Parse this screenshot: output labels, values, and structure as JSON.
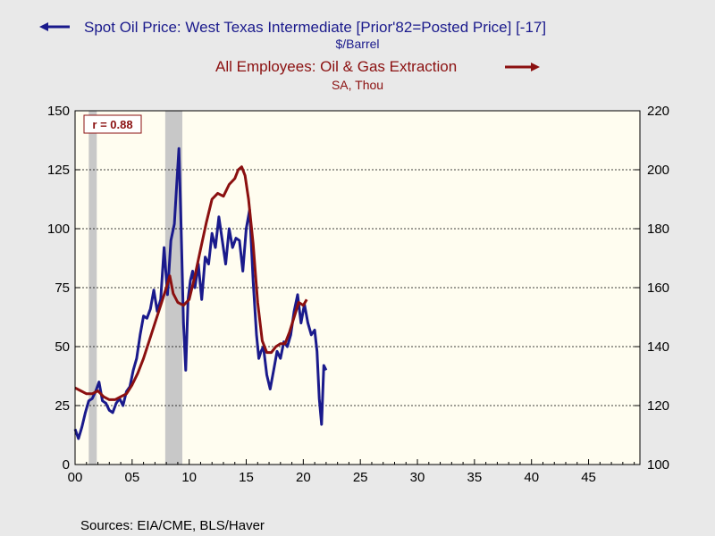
{
  "chart_data": {
    "type": "line",
    "legend": {
      "series1_title": "Spot Oil Price: West Texas Intermediate [Prior'82=Posted Price] [-17]",
      "series1_unit": "$/Barrel",
      "series2_title": "All Employees: Oil & Gas Extraction",
      "series2_unit": "SA, Thou"
    },
    "annotation": "r = 0.88",
    "source": "Sources:  EIA/CME, BLS/Haver",
    "colors": {
      "series1": "#1a1a8c",
      "series2": "#8b1010",
      "plot_bg": "#fffdf0",
      "page_bg": "#e9e9e9",
      "recession": "#c8c8c8"
    },
    "x_axis": {
      "range": [
        0,
        49.5
      ],
      "ticks": [
        0,
        5,
        10,
        15,
        20,
        25,
        30,
        35,
        40,
        45
      ],
      "tick_labels": [
        "00",
        "05",
        "10",
        "15",
        "20",
        "25",
        "30",
        "35",
        "40",
        "45"
      ]
    },
    "y_left": {
      "range": [
        0,
        150
      ],
      "ticks": [
        0,
        25,
        50,
        75,
        100,
        125,
        150
      ],
      "tick_labels": [
        "0",
        "25",
        "50",
        "75",
        "100",
        "125",
        "150"
      ]
    },
    "y_right": {
      "range": [
        100,
        220
      ],
      "ticks": [
        100,
        120,
        140,
        160,
        180,
        200,
        220
      ],
      "tick_labels": [
        "100",
        "120",
        "140",
        "160",
        "180",
        "200",
        "220"
      ]
    },
    "grid": "horizontal dashed",
    "recessions": [
      [
        1.2,
        1.9
      ],
      [
        7.9,
        9.4
      ]
    ],
    "series": [
      {
        "name": "Spot Oil Price: West Texas Intermediate [Prior'82=Posted Price] [-17]",
        "axis": "left",
        "x": [
          0.0,
          0.3,
          0.6,
          0.9,
          1.2,
          1.5,
          1.8,
          2.1,
          2.4,
          2.7,
          3.0,
          3.3,
          3.6,
          3.9,
          4.2,
          4.5,
          4.8,
          5.1,
          5.4,
          5.7,
          6.0,
          6.3,
          6.6,
          6.9,
          7.2,
          7.5,
          7.8,
          8.1,
          8.4,
          8.7,
          8.9,
          9.1,
          9.3,
          9.5,
          9.7,
          9.9,
          10.1,
          10.3,
          10.5,
          10.8,
          11.1,
          11.4,
          11.7,
          12.0,
          12.3,
          12.6,
          12.9,
          13.2,
          13.5,
          13.8,
          14.1,
          14.4,
          14.7,
          15.0,
          15.3,
          15.6,
          15.9,
          16.1,
          16.3,
          16.5,
          16.8,
          17.1,
          17.4,
          17.7,
          18.0,
          18.3,
          18.6,
          18.9,
          19.2,
          19.5,
          19.8,
          20.1,
          20.4,
          20.7,
          21.0,
          21.2,
          21.4,
          21.6,
          21.8,
          22.0
        ],
        "y": [
          15,
          11,
          16,
          22,
          27,
          28,
          31,
          35,
          27,
          26,
          23,
          22,
          26,
          28,
          25,
          31,
          33,
          40,
          45,
          55,
          63,
          62,
          66,
          74,
          65,
          70,
          92,
          72,
          95,
          102,
          118,
          134,
          100,
          60,
          40,
          70,
          78,
          82,
          75,
          85,
          70,
          88,
          85,
          98,
          92,
          105,
          95,
          85,
          100,
          92,
          96,
          95,
          82,
          100,
          108,
          78,
          55,
          45,
          48,
          50,
          38,
          32,
          40,
          48,
          45,
          52,
          50,
          55,
          65,
          72,
          60,
          68,
          60,
          55,
          57,
          48,
          28,
          17,
          42,
          40
        ]
      },
      {
        "name": "All Employees: Oil & Gas Extraction",
        "axis": "right",
        "x": [
          0.0,
          0.5,
          1.0,
          1.5,
          2.0,
          2.5,
          3.0,
          3.5,
          4.0,
          4.5,
          5.0,
          5.5,
          6.0,
          6.5,
          7.0,
          7.5,
          8.0,
          8.3,
          8.6,
          9.0,
          9.5,
          10.0,
          10.5,
          11.0,
          11.5,
          12.0,
          12.5,
          13.0,
          13.5,
          14.0,
          14.3,
          14.6,
          14.9,
          15.2,
          15.6,
          16.0,
          16.4,
          16.8,
          17.2,
          17.6,
          18.0,
          18.4,
          18.8,
          19.2,
          19.6,
          20.0,
          20.3
        ],
        "y": [
          126,
          125,
          124,
          124,
          125,
          123,
          122,
          122,
          123,
          124,
          127,
          131,
          136,
          142,
          148,
          154,
          160,
          164,
          158,
          155,
          154,
          156,
          164,
          173,
          182,
          190,
          192,
          191,
          195,
          197,
          200,
          201,
          198,
          190,
          175,
          155,
          142,
          138,
          138,
          140,
          141,
          141,
          145,
          150,
          155,
          154,
          156
        ]
      }
    ]
  }
}
